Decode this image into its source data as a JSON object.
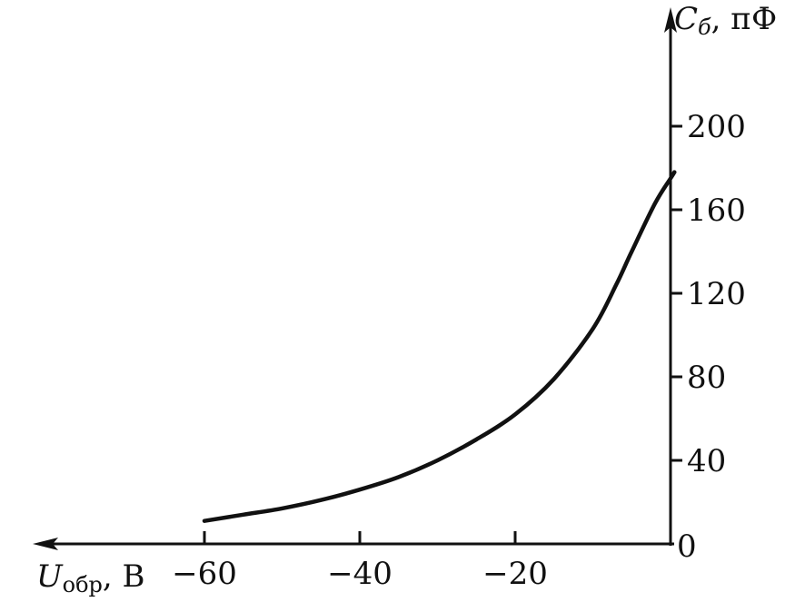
{
  "chart_data": {
    "type": "line",
    "title": "",
    "xlabel": {
      "main": "U",
      "sub": "обр",
      "unit": ", В"
    },
    "ylabel": {
      "main": "C",
      "sub": "б",
      "unit": ", пФ"
    },
    "xlim": [
      -60,
      0
    ],
    "ylim": [
      0,
      200
    ],
    "x_direction": "reversed",
    "grid": false,
    "origin_label": "0",
    "x_ticks": [
      {
        "value": -60,
        "label": "−60"
      },
      {
        "value": -40,
        "label": "−40"
      },
      {
        "value": -20,
        "label": "−20"
      }
    ],
    "y_ticks": [
      {
        "value": 40,
        "label": "40"
      },
      {
        "value": 80,
        "label": "80"
      },
      {
        "value": 120,
        "label": "120"
      },
      {
        "value": 160,
        "label": "160"
      },
      {
        "value": 200,
        "label": "200"
      }
    ],
    "series": [
      {
        "x": [
          -60,
          -55,
          -50,
          -45,
          -40,
          -35,
          -30,
          -25,
          -20,
          -15,
          -10,
          -7,
          -5,
          -2,
          0,
          0.5
        ],
        "y": [
          11,
          14,
          17,
          21,
          26,
          32,
          40,
          50,
          62,
          79,
          103,
          124,
          140,
          163,
          175,
          178
        ]
      }
    ]
  }
}
